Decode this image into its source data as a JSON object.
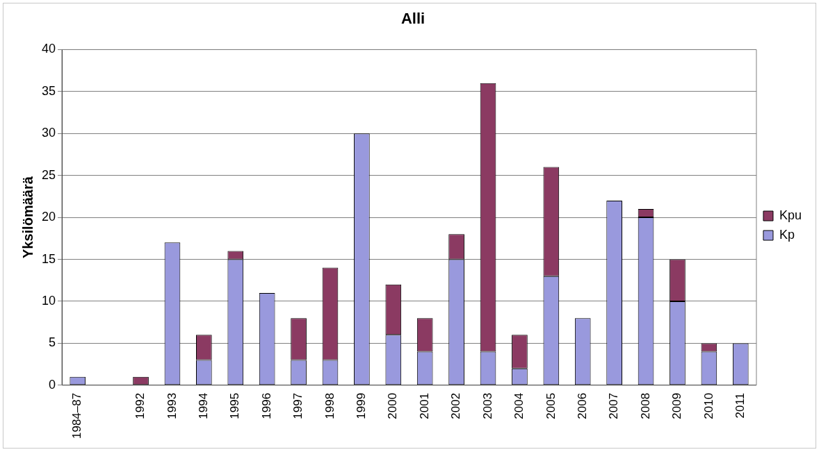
{
  "chart_data": {
    "type": "bar",
    "title": "Alli",
    "ylabel": "Yksilömäärä",
    "categories": [
      "1984–87",
      null,
      "1992",
      "1993",
      "1994",
      "1995",
      "1996",
      "1997",
      "1998",
      "1999",
      "2000",
      "2001",
      "2002",
      "2003",
      "2004",
      "2005",
      "2006",
      "2007",
      "2008",
      "2009",
      "2010",
      "2011"
    ],
    "series": [
      {
        "name": "Kp",
        "color": "#9999dd",
        "values": [
          1,
          null,
          0,
          17,
          3,
          15,
          11,
          3,
          3,
          30,
          6,
          4,
          15,
          4,
          2,
          13,
          8,
          22,
          20,
          10,
          4,
          5
        ]
      },
      {
        "name": "Kpu",
        "color": "#8b3a62",
        "values": [
          0,
          null,
          1,
          0,
          3,
          1,
          0,
          5,
          11,
          0,
          6,
          4,
          3,
          32,
          4,
          13,
          0,
          0,
          1,
          5,
          1,
          0
        ]
      }
    ],
    "stacked": true,
    "ylim": [
      0,
      40
    ],
    "yticks": [
      0,
      5,
      10,
      15,
      20,
      25,
      30,
      35,
      40
    ],
    "grid": "y",
    "legend": "right"
  }
}
